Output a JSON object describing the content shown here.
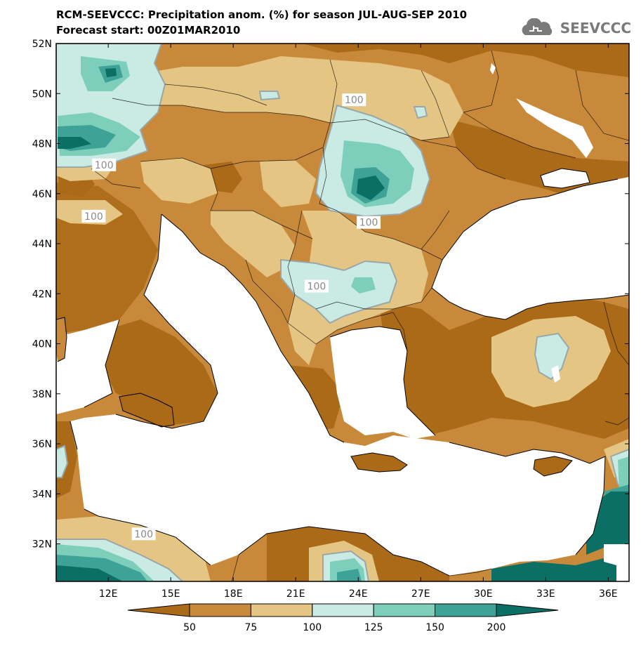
{
  "title": "RCM-SEEVCCC: Precipitation anom. (%) for season JUL-AUG-SEP 2010",
  "subtitle": "Forecast start: 00Z01MAR2010",
  "logo": {
    "text": "SEEVCCC",
    "icon": "cloud-icon"
  },
  "map": {
    "lon_range": [
      9.5,
      37.0
    ],
    "lat_range": [
      30.5,
      52.0
    ],
    "lat_ticks": [
      {
        "value": 52,
        "label": "52N"
      },
      {
        "value": 50,
        "label": "50N"
      },
      {
        "value": 48,
        "label": "48N"
      },
      {
        "value": 46,
        "label": "46N"
      },
      {
        "value": 44,
        "label": "44N"
      },
      {
        "value": 42,
        "label": "42N"
      },
      {
        "value": 40,
        "label": "40N"
      },
      {
        "value": 38,
        "label": "38N"
      },
      {
        "value": 36,
        "label": "36N"
      },
      {
        "value": 34,
        "label": "34N"
      },
      {
        "value": 32,
        "label": "32N"
      }
    ],
    "lon_ticks": [
      {
        "value": 12,
        "label": "12E"
      },
      {
        "value": 15,
        "label": "15E"
      },
      {
        "value": 18,
        "label": "18E"
      },
      {
        "value": 21,
        "label": "21E"
      },
      {
        "value": 24,
        "label": "24E"
      },
      {
        "value": 27,
        "label": "27E"
      },
      {
        "value": 30,
        "label": "30E"
      },
      {
        "value": 33,
        "label": "33E"
      },
      {
        "value": 36,
        "label": "36E"
      }
    ],
    "contour_labels": [
      {
        "text": "100",
        "lon": 23.8,
        "lat": 49.75
      },
      {
        "text": "100",
        "lon": 11.8,
        "lat": 47.15
      },
      {
        "text": "100",
        "lon": 11.3,
        "lat": 45.1
      },
      {
        "text": "100",
        "lon": 24.5,
        "lat": 44.85
      },
      {
        "text": "100",
        "lon": 22.0,
        "lat": 42.3
      },
      {
        "text": "100",
        "lon": 13.7,
        "lat": 32.4
      }
    ]
  },
  "colorbar": {
    "colors": [
      "#ab6a18",
      "#c88a3a",
      "#e5c583",
      "#c9ebe4",
      "#7dcfbc",
      "#3ea396",
      "#0c6f66"
    ],
    "labels": [
      "50",
      "75",
      "100",
      "125",
      "150",
      "200"
    ]
  }
}
